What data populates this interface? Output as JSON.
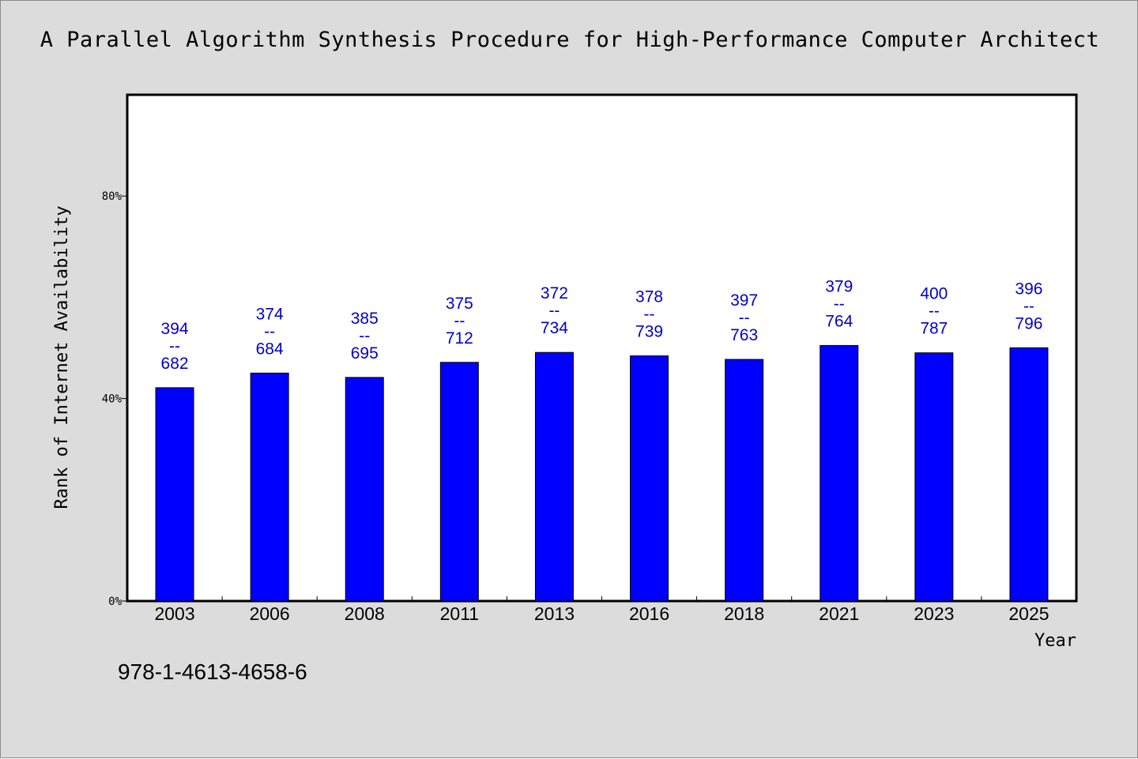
{
  "chart_data": {
    "type": "bar",
    "title": "A Parallel Algorithm Synthesis Procedure for High-Performance Computer Architect",
    "xlabel": "Year",
    "ylabel": "Rank of Internet Availability",
    "footer": "978-1-4613-4658-6",
    "categories": [
      "2003",
      "2006",
      "2008",
      "2011",
      "2013",
      "2016",
      "2018",
      "2021",
      "2023",
      "2025"
    ],
    "values": [
      0.4214,
      0.4503,
      0.4417,
      0.4715,
      0.4911,
      0.4843,
      0.4773,
      0.5048,
      0.4903,
      0.5003
    ],
    "labels": [
      [
        "394",
        "--",
        "682"
      ],
      [
        "374",
        "--",
        "684"
      ],
      [
        "385",
        "--",
        "695"
      ],
      [
        "375",
        "--",
        "712"
      ],
      [
        "372",
        "--",
        "734"
      ],
      [
        "378",
        "--",
        "739"
      ],
      [
        "397",
        "--",
        "763"
      ],
      [
        "379",
        "--",
        "764"
      ],
      [
        "400",
        "--",
        "787"
      ],
      [
        "396",
        "--",
        "796"
      ]
    ],
    "yticks": [
      0,
      0.4,
      0.8
    ],
    "ytick_labels": [
      "0%",
      "40%",
      "80%"
    ],
    "ylim": [
      0,
      1.0
    ],
    "grid": false,
    "legend": "none",
    "colors": {
      "bar": "#0000ff",
      "label": "#0000cc",
      "background": "#dcdcdc",
      "plot": "#ffffff"
    }
  }
}
